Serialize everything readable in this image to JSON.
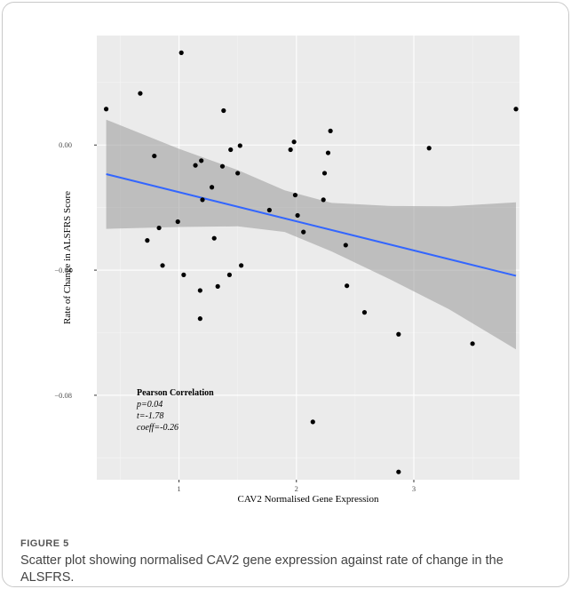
{
  "chart_data": {
    "type": "scatter",
    "xlabel": "CAV2 Normalised Gene Expression",
    "ylabel": "Rate of Change in ALSFRS Score",
    "xlim": [
      0.3,
      3.9
    ],
    "ylim": [
      -0.107,
      0.035
    ],
    "xticks": [
      1,
      2,
      3
    ],
    "xtick_labels": [
      "1",
      "2",
      "3"
    ],
    "yticks": [
      0.0,
      -0.04,
      -0.08
    ],
    "ytick_labels": [
      "0.00",
      "−0.04",
      "−0.08"
    ],
    "grid": true,
    "colors": {
      "panel": "#ebebeb",
      "grid_major": "#ffffff",
      "points": "#000000",
      "fit_line": "#3366ff",
      "ribbon": "#999999"
    },
    "points": [
      {
        "x": 0.38,
        "y": 0.0115
      },
      {
        "x": 0.67,
        "y": 0.0165
      },
      {
        "x": 0.73,
        "y": -0.0305
      },
      {
        "x": 0.79,
        "y": -0.0035
      },
      {
        "x": 0.83,
        "y": -0.0265
      },
      {
        "x": 0.86,
        "y": -0.0385
      },
      {
        "x": 0.99,
        "y": -0.0245
      },
      {
        "x": 1.02,
        "y": 0.0295
      },
      {
        "x": 1.04,
        "y": -0.0415
      },
      {
        "x": 1.14,
        "y": -0.0065
      },
      {
        "x": 1.18,
        "y": -0.0465
      },
      {
        "x": 1.18,
        "y": -0.0555
      },
      {
        "x": 1.19,
        "y": -0.005
      },
      {
        "x": 1.2,
        "y": -0.0175
      },
      {
        "x": 1.28,
        "y": -0.0135
      },
      {
        "x": 1.3,
        "y": -0.0298
      },
      {
        "x": 1.33,
        "y": -0.0452
      },
      {
        "x": 1.37,
        "y": -0.0068
      },
      {
        "x": 1.38,
        "y": 0.011
      },
      {
        "x": 1.43,
        "y": -0.0415
      },
      {
        "x": 1.44,
        "y": -0.0015
      },
      {
        "x": 1.5,
        "y": -0.009
      },
      {
        "x": 1.52,
        "y": -0.0002
      },
      {
        "x": 1.53,
        "y": -0.0385
      },
      {
        "x": 1.77,
        "y": -0.0208
      },
      {
        "x": 1.95,
        "y": -0.0015
      },
      {
        "x": 1.98,
        "y": 0.001
      },
      {
        "x": 1.99,
        "y": -0.016
      },
      {
        "x": 2.01,
        "y": -0.0225
      },
      {
        "x": 2.06,
        "y": -0.0278
      },
      {
        "x": 2.14,
        "y": -0.0885
      },
      {
        "x": 2.23,
        "y": -0.0175
      },
      {
        "x": 2.24,
        "y": -0.009
      },
      {
        "x": 2.27,
        "y": -0.0025
      },
      {
        "x": 2.29,
        "y": 0.0045
      },
      {
        "x": 2.42,
        "y": -0.032
      },
      {
        "x": 2.43,
        "y": -0.045
      },
      {
        "x": 2.58,
        "y": -0.0535
      },
      {
        "x": 2.87,
        "y": -0.0605
      },
      {
        "x": 2.87,
        "y": -0.1045
      },
      {
        "x": 3.13,
        "y": -0.001
      },
      {
        "x": 3.5,
        "y": -0.0635
      },
      {
        "x": 3.87,
        "y": 0.0115
      }
    ],
    "fit_line": {
      "x": [
        0.38,
        3.87
      ],
      "y": [
        -0.0093,
        -0.0418
      ]
    },
    "confidence_band": {
      "x": [
        0.38,
        1.0,
        1.5,
        1.9,
        2.3,
        2.8,
        3.3,
        3.87
      ],
      "lower": [
        -0.0268,
        -0.0262,
        -0.026,
        -0.0278,
        -0.034,
        -0.043,
        -0.0525,
        -0.0653
      ],
      "upper": [
        0.0081,
        -0.0012,
        -0.008,
        -0.0145,
        -0.0185,
        -0.0195,
        -0.0196,
        -0.0183
      ]
    }
  },
  "annotation": {
    "heading": "Pearson Correlation",
    "p": "p=0.04",
    "t": "t=-1.78",
    "coeff": "coeff=-0.26"
  },
  "caption": {
    "label": "FIGURE 5",
    "text": "Scatter plot showing normalised CAV2 gene expression against rate of change in the ALSFRS."
  }
}
